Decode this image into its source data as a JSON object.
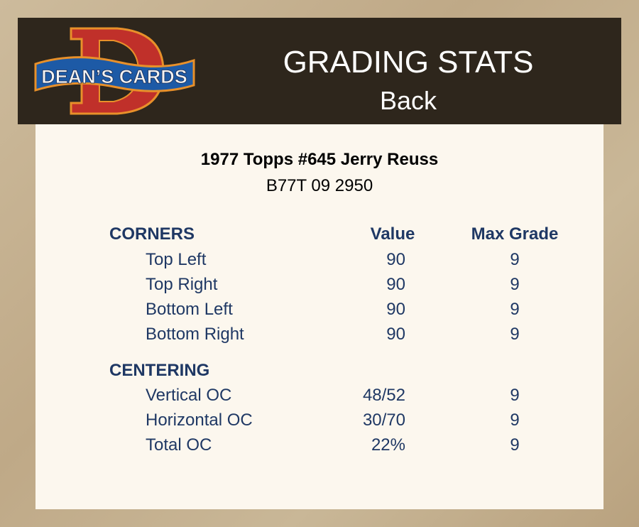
{
  "header": {
    "logo_text": "DEAN'S CARDS",
    "title": "GRADING STATS",
    "subtitle": "Back"
  },
  "card": {
    "title": "1977 Topps #645 Jerry Reuss",
    "cert": "B77T 09 2950"
  },
  "columns": {
    "value": "Value",
    "max_grade": "Max Grade"
  },
  "corners": {
    "heading": "CORNERS",
    "rows": [
      {
        "label": "Top Left",
        "value": "90",
        "max": "9"
      },
      {
        "label": "Top Right",
        "value": "90",
        "max": "9"
      },
      {
        "label": "Bottom Left",
        "value": "90",
        "max": "9"
      },
      {
        "label": "Bottom Right",
        "value": "90",
        "max": "9"
      }
    ]
  },
  "centering": {
    "heading": "CENTERING",
    "rows": [
      {
        "label": "Vertical OC",
        "value": "48/52",
        "max": "9"
      },
      {
        "label": "Horizontal OC",
        "value": "30/70",
        "max": "9"
      },
      {
        "label": "Total OC",
        "value": "22%",
        "max": "9"
      }
    ]
  },
  "colors": {
    "header_bg": "#2e261c",
    "text": "#1f3864",
    "card_bg": "#fcf7ee"
  }
}
